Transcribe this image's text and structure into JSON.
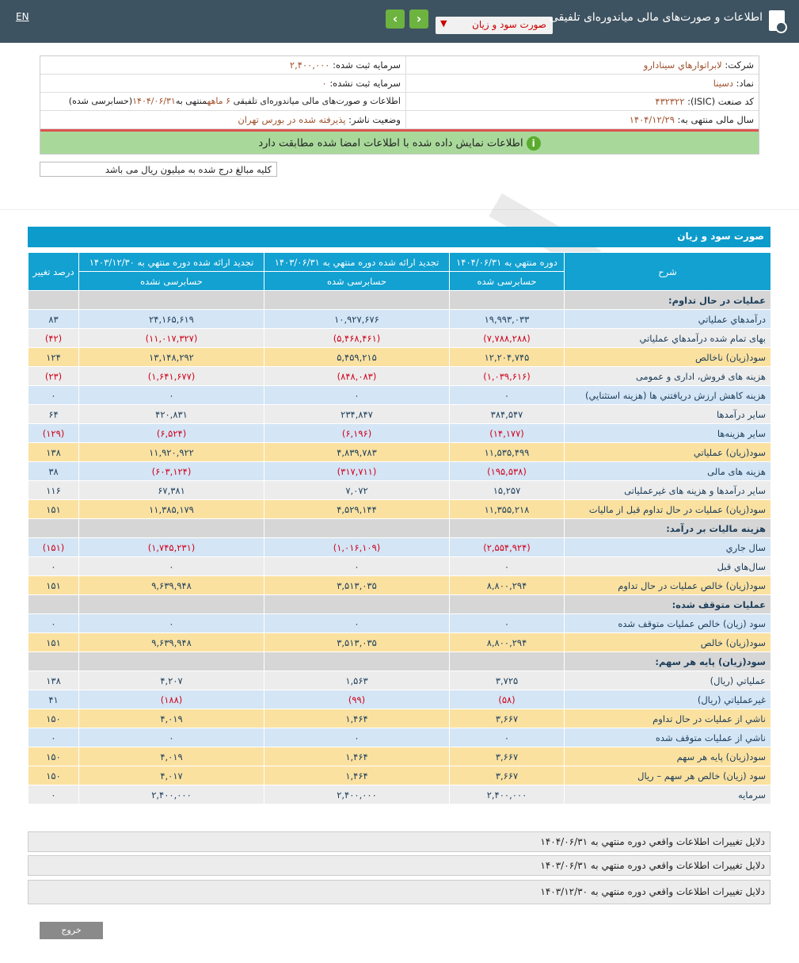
{
  "header": {
    "lang": "EN",
    "title": "اطلاعات و صورت‌های مالی میاندوره‌ای تلفیقی",
    "report_select": "صورت سود و زیان",
    "prev_icon": "chevron-left-icon",
    "next_icon": "chevron-right-icon"
  },
  "info": {
    "company_label": "شرکت:",
    "company": "لابراتوارهاي سينادارو",
    "capital_label": "سرمایه ثبت شده:",
    "capital": "۲,۴۰۰,۰۰۰",
    "symbol_label": "نماد:",
    "symbol": "دسینا",
    "unreg_capital_label": "سرمایه ثبت نشده:",
    "unreg_capital": "۰",
    "isic_label": "کد صنعت (ISIC):",
    "isic": "۴۳۲۳۲۲",
    "report_desc_prefix": "اطلاعات و صورت‌های مالی میاندوره‌ای تلفیقی",
    "report_period": "۶ ماهه",
    "report_desc_mid": "منتهی به",
    "report_date": "۱۴۰۴/۰۶/۳۱",
    "report_status": "(حسابرسی شده)",
    "fiscal_label": "سال مالی منتهی به:",
    "fiscal": "۱۴۰۴/۱۲/۲۹",
    "publisher_label": "وضعیت ناشر:",
    "publisher": "پذیرفته شده در بورس تهران",
    "match_notice": "اطلاعات نمایش داده شده با اطلاعات امضا شده مطابقت دارد",
    "unit_notice": "کلیه مبالغ درج شده به میلیون ریال می باشد"
  },
  "section_title": "صورت سود و زیان",
  "table": {
    "headers": [
      "شرح",
      "دوره منتهي به ۱۴۰۴/۰۶/۳۱",
      "تجدید ارائه شده دوره منتهي به ۱۴۰۳/۰۶/۳۱",
      "تجدید ارائه شده دوره منتهي به ۱۴۰۳/۱۲/۳۰",
      "درصد تغییر"
    ],
    "subheaders": [
      "حسابرسی شده",
      "حسابرسی شده",
      "حسابرسی نشده"
    ],
    "rows": [
      {
        "type": "sec",
        "label": "عملیات در حال تداوم:",
        "values": [
          "",
          "",
          "",
          ""
        ]
      },
      {
        "type": "blue",
        "label": "درآمدهاي عملياتي",
        "values": [
          "۱۹,۹۹۳,۰۳۳",
          "۱۰,۹۲۷,۶۷۶",
          "۲۴,۱۶۵,۶۱۹",
          "۸۳"
        ]
      },
      {
        "type": "gray",
        "label": "بهای تمام شده درآمدهاي عملياتي",
        "values": [
          "(۷,۷۸۸,۲۸۸)",
          "(۵,۴۶۸,۴۶۱)",
          "(۱۱,۰۱۷,۳۲۷)",
          "(۴۲)"
        ]
      },
      {
        "type": "yellow",
        "label": "سود(زيان) ناخالص",
        "values": [
          "۱۲,۲۰۴,۷۴۵",
          "۵,۴۵۹,۲۱۵",
          "۱۳,۱۴۸,۲۹۲",
          "۱۲۴"
        ]
      },
      {
        "type": "gray",
        "label": "هزینه های فروش، اداری و عمومی",
        "values": [
          "(۱,۰۳۹,۶۱۶)",
          "(۸۴۸,۰۸۳)",
          "(۱,۶۴۱,۶۷۷)",
          "(۲۳)"
        ]
      },
      {
        "type": "blue",
        "label": "هزینه کاهش ارزش دريافتني ها (هزينه استثنايي)",
        "values": [
          "۰",
          "۰",
          "۰",
          "۰"
        ]
      },
      {
        "type": "gray",
        "label": "ساير درآمدها",
        "values": [
          "۳۸۴,۵۴۷",
          "۲۳۴,۸۴۷",
          "۴۲۰,۸۳۱",
          "۶۴"
        ]
      },
      {
        "type": "blue",
        "label": "سایر هزینه‌ها",
        "values": [
          "(۱۴,۱۷۷)",
          "(۶,۱۹۶)",
          "(۶,۵۲۴)",
          "(۱۲۹)"
        ]
      },
      {
        "type": "yellow",
        "label": "سود(زيان) عملياتي",
        "values": [
          "۱۱,۵۳۵,۴۹۹",
          "۴,۸۳۹,۷۸۳",
          "۱۱,۹۲۰,۹۲۲",
          "۱۳۸"
        ]
      },
      {
        "type": "blue",
        "label": "هزینه های مالی",
        "values": [
          "(۱۹۵,۵۳۸)",
          "(۳۱۷,۷۱۱)",
          "(۶۰۳,۱۲۴)",
          "۳۸"
        ]
      },
      {
        "type": "gray",
        "label": "ساير درآمدها و هزینه های غیرعملیاتی",
        "values": [
          "۱۵,۲۵۷",
          "۷,۰۷۲",
          "۶۷,۳۸۱",
          "۱۱۶"
        ]
      },
      {
        "type": "yellow",
        "label": "سود(زيان) عمليات در حال تداوم قبل از ماليات",
        "values": [
          "۱۱,۳۵۵,۲۱۸",
          "۴,۵۲۹,۱۴۴",
          "۱۱,۳۸۵,۱۷۹",
          "۱۵۱"
        ]
      },
      {
        "type": "sec",
        "label": "هزینه مالیات بر درآمد:",
        "values": [
          "",
          "",
          "",
          ""
        ]
      },
      {
        "type": "blue",
        "label": "سال جاري",
        "values": [
          "(۲,۵۵۴,۹۲۴)",
          "(۱,۰۱۶,۱۰۹)",
          "(۱,۷۴۵,۲۳۱)",
          "(۱۵۱)"
        ]
      },
      {
        "type": "gray",
        "label": "سال‌هاي قبل",
        "values": [
          "۰",
          "۰",
          "۰",
          "۰"
        ]
      },
      {
        "type": "yellow",
        "label": "سود(زيان) خالص عمليات در حال تداوم",
        "values": [
          "۸,۸۰۰,۲۹۴",
          "۳,۵۱۳,۰۳۵",
          "۹,۶۳۹,۹۴۸",
          "۱۵۱"
        ]
      },
      {
        "type": "sec",
        "label": "عملیات متوقف شده:",
        "values": [
          "",
          "",
          "",
          ""
        ]
      },
      {
        "type": "blue",
        "label": "سود (زيان) خالص عمليات متوقف شده",
        "values": [
          "۰",
          "۰",
          "۰",
          "۰"
        ]
      },
      {
        "type": "yellow",
        "label": "سود(زيان) خالص",
        "values": [
          "۸,۸۰۰,۲۹۴",
          "۳,۵۱۳,۰۳۵",
          "۹,۶۳۹,۹۴۸",
          "۱۵۱"
        ]
      },
      {
        "type": "sec",
        "label": "سود(زيان) پايه هر سهم:",
        "values": [
          "",
          "",
          "",
          ""
        ]
      },
      {
        "type": "gray",
        "label": "عملياتي (ريال)",
        "values": [
          "۳,۷۲۵",
          "۱,۵۶۳",
          "۴,۲۰۷",
          "۱۳۸"
        ]
      },
      {
        "type": "blue",
        "label": "غيرعملياتي (ريال)",
        "values": [
          "(۵۸)",
          "(۹۹)",
          "(۱۸۸)",
          "۴۱"
        ]
      },
      {
        "type": "yellow",
        "label": "ناشي از عمليات در حال تداوم",
        "values": [
          "۳,۶۶۷",
          "۱,۴۶۴",
          "۴,۰۱۹",
          "۱۵۰"
        ]
      },
      {
        "type": "blue",
        "label": "ناشي از عمليات متوقف شده",
        "values": [
          "۰",
          "۰",
          "۰",
          "۰"
        ]
      },
      {
        "type": "yellow",
        "label": "سود(زيان) پايه هر سهم",
        "values": [
          "۳,۶۶۷",
          "۱,۴۶۴",
          "۴,۰۱۹",
          "۱۵۰"
        ]
      },
      {
        "type": "yellow",
        "label": "سود (زيان) خالص هر سهم – ريال",
        "values": [
          "۳,۶۶۷",
          "۱,۴۶۴",
          "۴,۰۱۷",
          "۱۵۰"
        ]
      },
      {
        "type": "gray",
        "label": "سرمایه",
        "values": [
          "۲,۴۰۰,۰۰۰",
          "۲,۴۰۰,۰۰۰",
          "۲,۴۰۰,۰۰۰",
          "۰"
        ]
      }
    ]
  },
  "change_reasons": [
    "دلایل تغییرات اطلاعات واقعي دوره منتهي به ۱۴۰۴/۰۶/۳۱",
    "دلایل تغییرات اطلاعات واقعي دوره منتهي به ۱۴۰۳/۰۶/۳۱",
    "دلایل تغییرات اطلاعات واقعي دوره منتهي به ۱۴۰۳/۱۲/۳۰"
  ],
  "exit_label": "خروج",
  "colors": {
    "topbar": "#3e5361",
    "accent": "#0d9bcb",
    "negative": "#d0021b",
    "nav": "#6cb33f",
    "ok": "#a8d99a"
  }
}
